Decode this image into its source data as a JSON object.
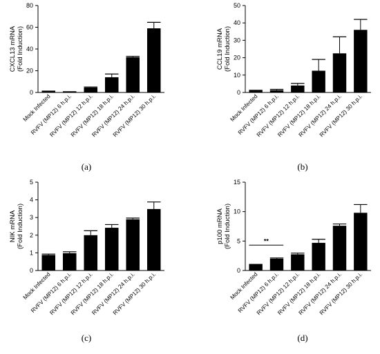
{
  "chart_data": [
    {
      "type": "bar",
      "panel_label": "(a)",
      "ylabel": [
        "CXCL13 mRNA",
        "(Fold Induction)"
      ],
      "ylim": [
        0,
        80
      ],
      "yticks": [
        0,
        20,
        40,
        60,
        80
      ],
      "categories": [
        "Mock Infected",
        "RVFV (MP12) 6 h.p.i.",
        "RVFV (MP12) 12 h.p.i.",
        "RVFV (MP12) 18 h.p.i.",
        "RVFV (MP12) 24 h.p.i.",
        "RVFV (MP12) 30 h.p.i."
      ],
      "values": [
        1.0,
        0.5,
        4.5,
        14,
        32.5,
        59
      ],
      "errors": [
        0.3,
        0.2,
        0.5,
        3,
        0.8,
        5.5
      ],
      "bar_color": "#000000"
    },
    {
      "type": "bar",
      "panel_label": "(b)",
      "ylabel": [
        "CCL19 mRNA",
        "(Fold Induction)"
      ],
      "ylim": [
        0,
        50
      ],
      "yticks": [
        0,
        10,
        20,
        30,
        40,
        50
      ],
      "categories": [
        "Mock Infected",
        "RVFV (MP12) 6 h.p.i.",
        "RVFV (MP12) 12 h.p.i.",
        "RVFV (MP12) 18 h.p.i.",
        "RVFV (MP12) 24 h.p.i.",
        "RVFV (MP12) 30 h.p.i."
      ],
      "values": [
        1.0,
        1.3,
        4.0,
        12.5,
        22.5,
        36
      ],
      "errors": [
        0.3,
        0.5,
        1.2,
        6.5,
        9.5,
        6.0
      ],
      "bar_color": "#000000"
    },
    {
      "type": "bar",
      "panel_label": "(c)",
      "ylabel": [
        "NIK mRNA",
        "(Fold Induction)"
      ],
      "ylim": [
        0,
        5
      ],
      "yticks": [
        0,
        1,
        2,
        3,
        4,
        5
      ],
      "categories": [
        "Mock Infected",
        "RVFV (MP12) 6 h.p.i.",
        "RVFV (MP12) 12 h.p.i.",
        "RVFV (MP12) 18 h.p.i.",
        "RVFV (MP12) 24 h.p.i.",
        "RVFV (MP12) 30 h.p.i."
      ],
      "values": [
        0.88,
        0.98,
        2.0,
        2.42,
        2.9,
        3.48
      ],
      "errors": [
        0.05,
        0.08,
        0.25,
        0.18,
        0.07,
        0.4
      ],
      "bar_color": "#000000"
    },
    {
      "type": "bar",
      "panel_label": "(d)",
      "ylabel": [
        "p100 mRNA",
        "(Fold Induction)"
      ],
      "ylim": [
        0,
        15
      ],
      "yticks": [
        0,
        5,
        10,
        15
      ],
      "categories": [
        "Mock Infected",
        "RVFV (MP12) 6 h.p.i.",
        "RVFV (MP12) 12 h.p.i.",
        "RVFV (MP12) 18 h.p.i.",
        "RVFV (MP12) 24 h.p.i.",
        "RVFV (MP12) 30 h.p.i."
      ],
      "values": [
        1.0,
        2.0,
        2.75,
        4.7,
        7.6,
        9.8
      ],
      "errors": [
        0.05,
        0.12,
        0.2,
        0.6,
        0.3,
        1.4
      ],
      "bar_color": "#000000",
      "annotations": [
        {
          "text": "**",
          "from": 0,
          "to": 1,
          "y": 4.3
        }
      ]
    }
  ]
}
